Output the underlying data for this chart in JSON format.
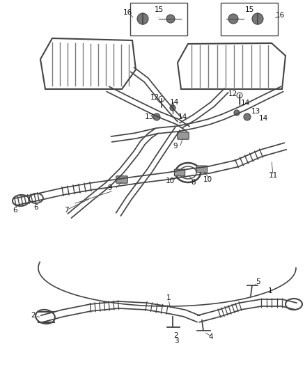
{
  "bg_color": "#ffffff",
  "line_color": "#444444",
  "label_color": "#111111",
  "fig_w": 4.38,
  "fig_h": 5.33,
  "dpi": 100
}
